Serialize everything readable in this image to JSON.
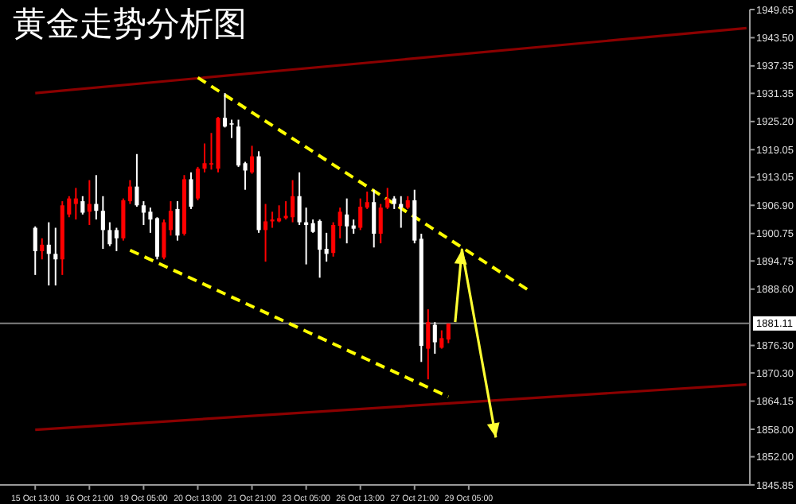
{
  "chart_data": {
    "type": "candlestick",
    "title": "黄金走势分析图",
    "categories": [
      "15 Oct 13:00",
      null,
      null,
      null,
      null,
      null,
      null,
      null,
      "16 Oct 21:00",
      null,
      null,
      null,
      null,
      null,
      null,
      null,
      "19 Oct 05:00",
      null,
      null,
      null,
      null,
      null,
      null,
      null,
      "20 Oct 13:00",
      null,
      null,
      null,
      null,
      null,
      null,
      null,
      "21 Oct 21:00",
      null,
      null,
      null,
      null,
      null,
      null,
      null,
      "23 Oct 05:00",
      null,
      null,
      null,
      null,
      null,
      null,
      null,
      "26 Oct 13:00",
      null,
      null,
      null,
      null,
      null,
      null,
      null,
      "27 Oct 21:00",
      null,
      null,
      null,
      null,
      null,
      null,
      null,
      "29 Oct 05:00",
      null,
      null,
      null,
      null,
      null,
      null,
      null,
      null,
      null,
      null,
      null,
      null,
      null,
      null,
      null,
      null,
      null,
      null,
      null,
      null,
      null,
      null,
      null,
      null,
      null,
      null,
      null,
      null,
      null,
      null,
      null,
      null,
      null,
      null,
      null,
      null,
      null,
      null,
      null,
      null,
      null
    ],
    "ohlc": [
      [
        1902.0,
        1902.3,
        1891.7,
        1896.9
      ],
      [
        1896.9,
        1899.7,
        1895.1,
        1898.3
      ],
      [
        1898.3,
        1903.2,
        1889.4,
        1896.3
      ],
      [
        1896.3,
        1902.0,
        1889.4,
        1895.1
      ],
      [
        1895.1,
        1907.8,
        1891.7,
        1906.9
      ],
      [
        1904.9,
        1908.9,
        1904.3,
        1908.4
      ],
      [
        1907.2,
        1910.7,
        1903.8,
        1908.4
      ],
      [
        1907.8,
        1908.9,
        1904.9,
        1905.3
      ],
      [
        1905.5,
        1912.4,
        1902.6,
        1907.2
      ],
      [
        1907.2,
        1913.5,
        1903.8,
        1905.7
      ],
      [
        1905.7,
        1908.9,
        1897.4,
        1901.5
      ],
      [
        1901.5,
        1903.2,
        1898.0,
        1898.4
      ],
      [
        1901.5,
        1902.0,
        1896.9,
        1899.7
      ],
      [
        1899.7,
        1908.4,
        1899.2,
        1908.0
      ],
      [
        1907.8,
        1912.4,
        1907.2,
        1911.0
      ],
      [
        1911.0,
        1918.1,
        1906.6,
        1906.9
      ],
      [
        1906.9,
        1907.8,
        1902.6,
        1905.3
      ],
      [
        1905.5,
        1906.4,
        1900.9,
        1903.8
      ],
      [
        1904.1,
        1904.3,
        1895.1,
        1895.7
      ],
      [
        1895.5,
        1903.8,
        1895.1,
        1903.2
      ],
      [
        1901.5,
        1907.8,
        1900.3,
        1905.7
      ],
      [
        1906.1,
        1907.8,
        1899.2,
        1900.3
      ],
      [
        1900.7,
        1913.5,
        1900.3,
        1912.6
      ],
      [
        1912.6,
        1914.1,
        1906.1,
        1906.6
      ],
      [
        1908.4,
        1915.3,
        1908.0,
        1914.9
      ],
      [
        1914.9,
        1920.4,
        1914.1,
        1916.1
      ],
      [
        1915.8,
        1922.7,
        1914.7,
        1916.1
      ],
      [
        1914.9,
        1926.2,
        1914.1,
        1926.0
      ],
      [
        1926.0,
        1931.4,
        1923.9,
        1924.1
      ],
      [
        1924.8,
        1925.6,
        1921.6,
        1924.6
      ],
      [
        1924.1,
        1925.6,
        1915.3,
        1915.6
      ],
      [
        1916.1,
        1916.4,
        1910.3,
        1914.5
      ],
      [
        1914.1,
        1919.9,
        1913.8,
        1917.6
      ],
      [
        1917.6,
        1918.7,
        1900.9,
        1901.5
      ],
      [
        1901.5,
        1907.2,
        1894.6,
        1903.4
      ],
      [
        1903.4,
        1905.5,
        1902.0,
        1903.8
      ],
      [
        1903.4,
        1906.9,
        1903.2,
        1904.1
      ],
      [
        1904.1,
        1907.8,
        1903.8,
        1904.6
      ],
      [
        1904.3,
        1912.4,
        1903.2,
        1908.9
      ],
      [
        1908.9,
        1914.1,
        1902.6,
        1903.2
      ],
      [
        1903.2,
        1906.4,
        1894.0,
        1902.6
      ],
      [
        1903.0,
        1903.8,
        1900.9,
        1901.1
      ],
      [
        1903.5,
        1903.8,
        1891.1,
        1897.2
      ],
      [
        1897.4,
        1900.9,
        1894.6,
        1896.3
      ],
      [
        1896.5,
        1903.2,
        1895.7,
        1902.6
      ],
      [
        1902.4,
        1906.4,
        1899.7,
        1905.5
      ],
      [
        1904.9,
        1908.4,
        1898.6,
        1902.3
      ],
      [
        1902.5,
        1903.8,
        1900.7,
        1901.8
      ],
      [
        1902.0,
        1908.4,
        1901.5,
        1906.6
      ],
      [
        1906.4,
        1909.9,
        1906.1,
        1907.6
      ],
      [
        1907.6,
        1910.3,
        1897.7,
        1900.7
      ],
      [
        1900.7,
        1907.2,
        1898.6,
        1906.4
      ],
      [
        1906.4,
        1910.7,
        1906.1,
        1908.4
      ],
      [
        1908.4,
        1908.9,
        1906.1,
        1907.2
      ],
      [
        1907.2,
        1908.9,
        1902.0,
        1906.4
      ],
      [
        1906.4,
        1908.9,
        1906.1,
        1908.0
      ],
      [
        1908.0,
        1910.3,
        1898.6,
        1899.2
      ],
      [
        1899.6,
        1900.7,
        1872.7,
        1876.2
      ],
      [
        1875.6,
        1884.2,
        1868.9,
        1881.4
      ],
      [
        1880.8,
        1881.4,
        1874.5,
        1877.0
      ],
      [
        1875.8,
        1879.6,
        1875.6,
        1877.9
      ],
      [
        1877.6,
        1881.1,
        1876.8,
        1881.1
      ],
      null,
      null,
      null,
      null,
      null,
      null,
      null,
      null,
      null,
      null,
      null,
      null,
      null,
      null,
      null,
      null,
      null,
      null,
      null,
      null,
      null,
      null,
      null,
      null,
      null,
      null,
      null,
      null,
      null,
      null,
      null,
      null,
      null,
      null,
      null,
      null,
      null,
      null,
      null,
      null,
      null,
      null,
      null,
      null
    ],
    "colors": [
      "#ffffff",
      "#ff0000",
      "#ffffff",
      "#ffffff",
      "#ff0000",
      "#ff0000",
      "#ff0000",
      "#ffffff",
      "#ff0000",
      "#ffffff",
      "#ffffff",
      "#ffffff",
      "#ffffff",
      "#ff0000",
      "#ff0000",
      "#ffffff",
      "#ffffff",
      "#ffffff",
      "#ffffff",
      "#ff0000",
      "#ff0000",
      "#ffffff",
      "#ff0000",
      "#ffffff",
      "#ff0000",
      "#ff0000",
      "#ff0000",
      "#ff0000",
      "#ffffff",
      "#ffffff",
      "#ffffff",
      "#ffffff",
      "#ff0000",
      "#ffffff",
      "#ff0000",
      "#ff0000",
      "#ff0000",
      "#ff0000",
      "#ff0000",
      "#ffffff",
      "#ffffff",
      "#ffffff",
      "#ffffff",
      "#ffffff",
      "#ff0000",
      "#ff0000",
      "#ffffff",
      "#ffffff",
      "#ff0000",
      "#ff0000",
      "#ffffff",
      "#ff0000",
      "#ff0000",
      "#ffffff",
      "#ffffff",
      "#ff0000",
      "#ffffff",
      "#ffffff",
      "#ff0000",
      "#ffffff",
      "#ff0000",
      "#ff0000",
      null,
      null,
      null,
      null,
      null,
      null,
      null,
      null,
      null,
      null,
      null,
      null,
      null,
      null,
      null,
      null,
      null,
      null,
      null,
      null,
      null,
      null,
      null,
      null,
      null,
      null,
      null,
      null,
      null,
      null,
      null,
      null,
      null,
      null,
      null,
      null,
      null,
      null,
      null,
      null,
      null,
      null,
      null,
      null
    ],
    "series": [
      {
        "type": "line",
        "values": [
          1931.4,
          null,
          null,
          null,
          null,
          null,
          null,
          null,
          null,
          null,
          null,
          null,
          null,
          null,
          null,
          null,
          null,
          null,
          null,
          null,
          null,
          null,
          null,
          null,
          null,
          null,
          null,
          null,
          null,
          null,
          null,
          null,
          null,
          null,
          null,
          null,
          null,
          null,
          null,
          null,
          null,
          null,
          null,
          null,
          null,
          null,
          null,
          null,
          null,
          null,
          null,
          null,
          null,
          null,
          null,
          null,
          null,
          null,
          null,
          null,
          null,
          null,
          null,
          null,
          null,
          null,
          null,
          null,
          null,
          null,
          null,
          null,
          null,
          null,
          null,
          null,
          null,
          null,
          null,
          null,
          null,
          null,
          null,
          null,
          null,
          null,
          null,
          null,
          null,
          null,
          null,
          null,
          null,
          null,
          null,
          null,
          null,
          null,
          null,
          null,
          null,
          null,
          null,
          null,
          null,
          1945.6
        ],
        "color": "#8b0000",
        "line_style": "solid"
      },
      {
        "type": "line",
        "values": [
          1857.9,
          null,
          null,
          null,
          null,
          null,
          null,
          null,
          null,
          null,
          null,
          null,
          null,
          null,
          null,
          null,
          null,
          null,
          null,
          null,
          null,
          null,
          null,
          null,
          null,
          null,
          null,
          null,
          null,
          null,
          null,
          null,
          null,
          null,
          null,
          null,
          null,
          null,
          null,
          null,
          null,
          null,
          null,
          null,
          null,
          null,
          null,
          null,
          null,
          null,
          null,
          null,
          null,
          null,
          null,
          null,
          null,
          null,
          null,
          null,
          null,
          null,
          null,
          null,
          null,
          null,
          null,
          null,
          null,
          null,
          null,
          null,
          null,
          null,
          null,
          null,
          null,
          null,
          null,
          null,
          null,
          null,
          null,
          null,
          null,
          null,
          null,
          null,
          null,
          null,
          null,
          null,
          null,
          null,
          null,
          null,
          null,
          null,
          null,
          null,
          null,
          null,
          null,
          null,
          null,
          1867.8
        ],
        "color": "#8b0000",
        "line_style": "solid"
      },
      {
        "type": "line",
        "values": [
          null,
          null,
          null,
          null,
          null,
          null,
          null,
          null,
          null,
          null,
          null,
          null,
          null,
          null,
          null,
          null,
          null,
          null,
          null,
          null,
          null,
          null,
          null,
          null,
          1934.8,
          null,
          null,
          null,
          null,
          null,
          null,
          null,
          null,
          null,
          null,
          null,
          null,
          null,
          null,
          null,
          null,
          null,
          null,
          null,
          null,
          null,
          null,
          null,
          null,
          null,
          null,
          null,
          null,
          null,
          null,
          null,
          null,
          null,
          null,
          null,
          null,
          null,
          null,
          null,
          null,
          null,
          null,
          null,
          null,
          null,
          null,
          null,
          null,
          1888.2,
          null,
          null,
          null,
          null,
          null,
          null,
          null,
          null,
          null,
          null,
          null,
          null,
          null,
          null,
          null,
          null,
          null,
          null,
          null,
          null,
          null,
          null,
          null,
          null,
          null,
          null,
          null,
          null,
          null,
          null,
          null,
          null
        ],
        "color": "#ffff00",
        "line_style": "dashed"
      },
      {
        "type": "line",
        "values": [
          null,
          null,
          null,
          null,
          null,
          null,
          null,
          null,
          null,
          null,
          null,
          null,
          null,
          null,
          1897.1,
          null,
          null,
          null,
          null,
          null,
          null,
          null,
          null,
          null,
          null,
          null,
          null,
          null,
          null,
          null,
          null,
          null,
          null,
          null,
          null,
          null,
          null,
          null,
          null,
          null,
          null,
          null,
          null,
          null,
          null,
          null,
          null,
          null,
          null,
          null,
          null,
          null,
          null,
          null,
          null,
          null,
          null,
          null,
          null,
          null,
          null,
          1865.1,
          null,
          null,
          null,
          null,
          null,
          null,
          null,
          null,
          null,
          null,
          null,
          null,
          null,
          null,
          null,
          null,
          null,
          null,
          null,
          null,
          null,
          null,
          null,
          null,
          null,
          null,
          null,
          null,
          null,
          null,
          null,
          null,
          null,
          null,
          null,
          null,
          null,
          null,
          null,
          null,
          null,
          null,
          null,
          null
        ],
        "color": "#ffff00",
        "line_style": "dashed"
      },
      {
        "type": "line",
        "values": [
          null,
          null,
          null,
          null,
          null,
          null,
          null,
          null,
          null,
          null,
          null,
          null,
          null,
          null,
          null,
          null,
          null,
          null,
          null,
          null,
          null,
          null,
          null,
          null,
          null,
          null,
          null,
          null,
          null,
          null,
          null,
          null,
          null,
          null,
          null,
          null,
          null,
          null,
          null,
          null,
          null,
          null,
          null,
          null,
          null,
          null,
          null,
          null,
          null,
          null,
          null,
          null,
          null,
          null,
          null,
          null,
          null,
          null,
          null,
          null,
          null,
          null,
          1881.4,
          1897.2,
          null,
          null,
          null,
          null,
          1856.2,
          null,
          null,
          null,
          null,
          null,
          null,
          null,
          null,
          null,
          null,
          null,
          null,
          null,
          null,
          null,
          null,
          null,
          null,
          null,
          null,
          null,
          null,
          null,
          null,
          null,
          null,
          null,
          null,
          null,
          null,
          null,
          null,
          null,
          null,
          null,
          null,
          null
        ],
        "color": "#ffff33",
        "line_style": "solid"
      }
    ],
    "ylim": [
      1845.85,
      1949.65
    ],
    "yticks": [
      1949.65,
      {
        "value": 1943.5,
        "label": "1943.50"
      },
      1937.35,
      1931.35,
      {
        "value": 1925.2,
        "label": "1925.20"
      },
      1919.05,
      1913.05,
      {
        "value": 1906.9,
        "label": "1906.90"
      },
      1900.75,
      1894.75,
      {
        "value": 1888.6,
        "label": "1888.60"
      },
      {
        "value": 1876.3,
        "label": "1876.30"
      },
      {
        "value": 1870.3,
        "label": "1870.30"
      },
      1864.15,
      {
        "value": 1858,
        "label": "1858.00"
      },
      {
        "value": 1852,
        "label": "1852.00"
      },
      1845.85
    ],
    "ref_lines": [
      {
        "axis": "y",
        "value": 1881.11,
        "label": "1881.11",
        "color": "#808080"
      }
    ]
  }
}
